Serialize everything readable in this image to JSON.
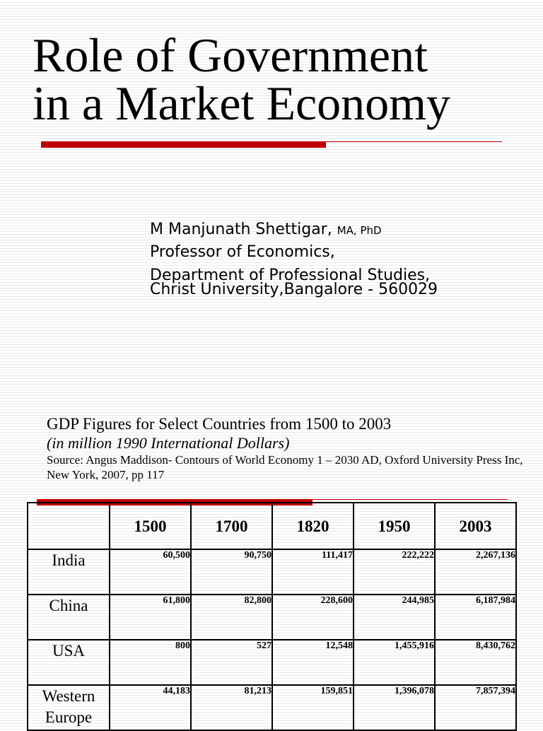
{
  "slide": {
    "title_lines": [
      "Role of Government",
      "in a Market Economy"
    ]
  },
  "author": {
    "name": "M Manjunath Shettigar,",
    "degrees": "MA, PhD",
    "role": "Professor of Economics,",
    "department": "Department of Professional Studies,",
    "university": "Christ University,Bangalore - 560029"
  },
  "gdp": {
    "title": "GDP Figures for Select Countries from 1500 to 2003",
    "units": "(in million 1990 International Dollars)",
    "source": "Source: Angus Maddison- Contours of World Economy 1 – 2030 AD, Oxford University Press Inc, New York, 2007, pp 117",
    "table": {
      "corner": "",
      "columns": [
        "1500",
        "1700",
        "1820",
        "1950",
        "2003"
      ],
      "rows": [
        {
          "country": "India",
          "values": [
            "60,500",
            "90,750",
            "111,417",
            "222,222",
            "2,267,136"
          ]
        },
        {
          "country": "China",
          "values": [
            "61,800",
            "82,800",
            "228,600",
            "244,985",
            "6,187,984"
          ]
        },
        {
          "country": "USA",
          "values": [
            "800",
            "527",
            "12,548",
            "1,455,916",
            "8,430,762"
          ]
        },
        {
          "country": "Western Europe",
          "values": [
            "44,183",
            "81,213",
            "159,851",
            "1,396,078",
            "7,857,394"
          ]
        }
      ]
    }
  },
  "colors": {
    "accent_rule": "#c00000",
    "background_lines": "#e9e9e9"
  }
}
